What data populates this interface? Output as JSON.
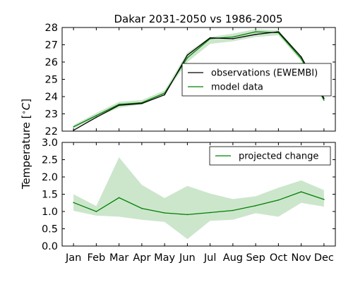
{
  "chart_data": {
    "type": "line",
    "title": "Dakar 2031-2050 vs 1986-2005",
    "ylabel_prefix": "Temperature [",
    "ylabel_symbol": "∘",
    "ylabel_unit": "C",
    "ylabel_suffix": "]",
    "categories": [
      "Jan",
      "Feb",
      "Mar",
      "Apr",
      "May",
      "Jun",
      "Jul",
      "Aug",
      "Sep",
      "Oct",
      "Nov",
      "Dec"
    ],
    "top": {
      "ylim": [
        22,
        28
      ],
      "yticks": [
        "22",
        "23",
        "24",
        "25",
        "26",
        "27",
        "28"
      ],
      "legend": {
        "placement": "right"
      },
      "series": [
        {
          "name": "observations (EWEMBI)",
          "color": "#000000",
          "values": [
            22.05,
            22.8,
            23.5,
            23.6,
            24.1,
            26.4,
            27.4,
            27.35,
            27.6,
            27.75,
            26.3,
            23.9
          ]
        },
        {
          "name": "model data",
          "color": "#008000",
          "values": [
            22.25,
            22.9,
            23.55,
            23.65,
            24.2,
            26.25,
            27.35,
            27.45,
            27.75,
            27.7,
            26.2,
            23.8
          ],
          "band_low": [
            22.15,
            22.8,
            23.35,
            23.55,
            24.1,
            26.0,
            27.05,
            27.2,
            27.45,
            27.55,
            26.05,
            23.7
          ],
          "band_high": [
            22.35,
            23.05,
            23.7,
            23.8,
            24.35,
            26.55,
            27.45,
            27.65,
            27.9,
            27.85,
            26.35,
            23.95
          ]
        }
      ]
    },
    "bottom": {
      "ylim": [
        0.0,
        3.0
      ],
      "yticks": [
        "0.0",
        "0.5",
        "1.0",
        "1.5",
        "2.0",
        "2.5",
        "3.0"
      ],
      "legend": {
        "placement": "top-right"
      },
      "series": [
        {
          "name": "projected change",
          "color": "#008000",
          "values": [
            1.26,
            1.0,
            1.4,
            1.09,
            0.96,
            0.91,
            0.97,
            1.03,
            1.17,
            1.33,
            1.57,
            1.35
          ],
          "band_low": [
            1.02,
            0.88,
            0.85,
            0.76,
            0.7,
            0.2,
            0.73,
            0.76,
            0.95,
            0.85,
            1.25,
            1.14
          ],
          "band_high": [
            1.5,
            1.16,
            2.57,
            1.77,
            1.39,
            1.74,
            1.52,
            1.36,
            1.44,
            1.69,
            1.9,
            1.62
          ]
        }
      ]
    }
  }
}
